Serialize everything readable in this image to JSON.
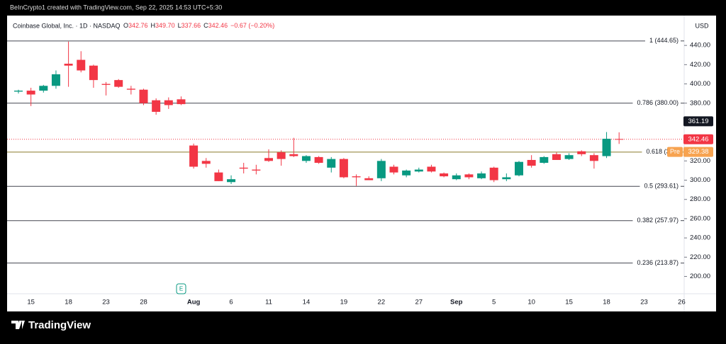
{
  "banner": "BeInCrypto1 created with TradingView.com, Sep 22, 2025 14:53 UTC+5:30",
  "footer": {
    "brand": "TradingView"
  },
  "chart_data": {
    "type": "candlestick",
    "title": "Coinbase Global, Inc. · 1D · NASDAQ",
    "ohlc_legend": [
      "O",
      "342.76",
      "H",
      "349.70",
      "L",
      "337.66",
      "C",
      "342.46",
      "−0.67 (−0.20%)"
    ],
    "currency": "USD",
    "earnings_marker": "E",
    "categories": [
      null,
      "15",
      null,
      null,
      "18",
      null,
      null,
      "23",
      null,
      null,
      "28",
      null,
      null,
      null,
      "Aug",
      null,
      null,
      "6",
      null,
      null,
      "11",
      null,
      null,
      "14",
      null,
      null,
      "19",
      null,
      null,
      "22",
      null,
      null,
      "27",
      null,
      null,
      "Sep",
      null,
      null,
      "5",
      null,
      null,
      "10",
      null,
      null,
      "15",
      null,
      null,
      "18",
      null,
      null,
      "23",
      null,
      null,
      "26"
    ],
    "open": [
      392,
      393,
      393,
      398,
      421,
      425,
      419,
      400,
      404,
      395,
      394,
      383,
      383,
      384,
      336,
      320,
      308,
      298,
      313,
      311,
      323,
      329,
      327,
      320,
      324,
      313,
      322,
      304,
      302,
      302,
      314,
      305,
      309,
      314,
      307,
      301,
      306,
      302,
      313,
      301,
      305,
      321,
      318,
      327,
      322,
      330,
      326,
      325,
      342.76,
      null,
      null,
      null,
      null,
      null
    ],
    "high": [
      394,
      396,
      399,
      414,
      444,
      434,
      420,
      402,
      405,
      398,
      395,
      385,
      386,
      387,
      338,
      323,
      311,
      305,
      318,
      316,
      332,
      331,
      344,
      326,
      325,
      324,
      323,
      306,
      304,
      322,
      316,
      311,
      313,
      316,
      308,
      307,
      307,
      309,
      314,
      307,
      320,
      326,
      325,
      329,
      328,
      331,
      328,
      350,
      349.7,
      null,
      null,
      null,
      null,
      null
    ],
    "low": [
      390,
      377,
      391,
      395,
      397,
      412,
      396,
      388,
      396,
      389,
      378,
      368,
      374,
      378,
      312,
      313,
      299,
      296,
      307,
      306,
      319,
      315,
      324,
      318,
      317,
      308,
      302,
      294,
      300,
      299,
      306,
      303,
      308,
      308,
      303,
      300,
      301,
      301,
      298,
      299,
      304,
      313,
      317,
      321,
      321,
      325,
      312,
      323,
      337.66,
      null,
      null,
      null,
      null,
      null
    ],
    "close": [
      393,
      389,
      398,
      410,
      419,
      414,
      404,
      399,
      397,
      394,
      380,
      371,
      378,
      379,
      314,
      317,
      299,
      301,
      312,
      310,
      320,
      322,
      325,
      325,
      318,
      322,
      303,
      303,
      300,
      320,
      308,
      310,
      311,
      309,
      304,
      305,
      303,
      307,
      300,
      303,
      319,
      315,
      324,
      321,
      326,
      327,
      320,
      343,
      342.46,
      null,
      null,
      null,
      null,
      null
    ],
    "up_color": "#089981",
    "down_color": "#f23645",
    "ylim": [
      182,
      471
    ],
    "yticks": [
      {
        "value": 200,
        "label": "200.00"
      },
      {
        "value": 220,
        "label": "220.00"
      },
      {
        "value": 240,
        "label": "240.00"
      },
      {
        "value": 260,
        "label": "260.00"
      },
      {
        "value": 280,
        "label": "280.00"
      },
      {
        "value": 300,
        "label": "300.00"
      },
      {
        "value": 320,
        "label": "320.00"
      },
      {
        "value": 340,
        "label": "340.00"
      },
      {
        "value": 360,
        "label": "360.00"
      },
      {
        "value": 380,
        "label": "380.00"
      },
      {
        "value": 400,
        "label": "400.00"
      },
      {
        "value": 420,
        "label": "420.00"
      },
      {
        "value": 440,
        "label": "440.00"
      }
    ],
    "fib_levels": [
      {
        "value": 444.65,
        "label": "1 (444.65)",
        "color": "#434651"
      },
      {
        "value": 380.0,
        "label": "0.786 (380.00)",
        "color": "#434651"
      },
      {
        "value": 329.2,
        "label": "0.618 (329.",
        "color": "#8a7a2a"
      },
      {
        "value": 293.61,
        "label": "0.5 (293.61)",
        "color": "#434651"
      },
      {
        "value": 257.97,
        "label": "0.382 (257.97)",
        "color": "#434651"
      },
      {
        "value": 213.87,
        "label": "0.236 (213.87)",
        "color": "#434651"
      }
    ],
    "price_markers": [
      {
        "value": 361.19,
        "color": "#131722"
      },
      {
        "value": 342.46,
        "color": "#f23645"
      },
      {
        "value": 329.38,
        "color": "#f7a350",
        "tag": "Pre"
      }
    ]
  }
}
